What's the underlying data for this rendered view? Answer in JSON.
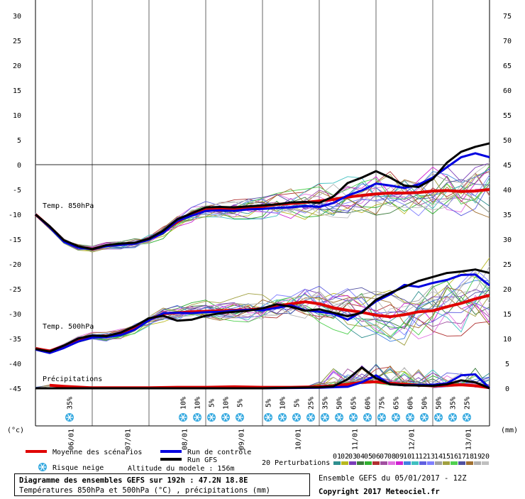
{
  "chart_data": {
    "type": "line",
    "x_ticks": [
      "06/01",
      "07/01",
      "08/01",
      "09/01",
      "10/01",
      "11/01",
      "12/01",
      "13/01"
    ],
    "left_axis": {
      "unit": "(°c)",
      "ticks": [
        30,
        25,
        20,
        15,
        10,
        5,
        0,
        -5,
        -10,
        -15,
        -20,
        -25,
        -30,
        -35,
        -40,
        -45
      ]
    },
    "right_axis": {
      "unit": "(mm)",
      "ticks": [
        75,
        70,
        65,
        60,
        55,
        50,
        45,
        40,
        35,
        30,
        25,
        20,
        15,
        10,
        5,
        0
      ]
    },
    "panel_labels": {
      "t850": "Temp. 850hPa",
      "t500": "Temp. 500hPa",
      "precip": "Précipitations"
    },
    "series": [
      {
        "name": "Moyenne des scénarios",
        "panel": "t850",
        "color": "#e00000",
        "x": [
          0,
          0.25,
          0.5,
          0.75,
          1,
          1.25,
          1.5,
          1.75,
          2,
          2.25,
          2.5,
          2.75,
          3,
          3.25,
          3.5,
          3.75,
          4,
          4.25,
          4.5,
          4.75,
          5,
          5.25,
          5.5,
          5.75,
          6,
          6.25,
          6.5,
          6.75,
          7,
          7.25,
          7.5,
          7.75,
          8
        ],
        "y": [
          -10,
          -12.5,
          -15.3,
          -16.5,
          -17,
          -16.3,
          -16,
          -15.8,
          -15,
          -13.5,
          -11.5,
          -10,
          -9,
          -8.8,
          -8.9,
          -8.7,
          -8.4,
          -8,
          -7.8,
          -7.6,
          -7.3,
          -7,
          -6.5,
          -6.2,
          -5.9,
          -5.7,
          -5.7,
          -5.6,
          -5.3,
          -5.2,
          -5.4,
          -5.3,
          -5
        ]
      },
      {
        "name": "Run de contrôle",
        "panel": "t850",
        "color": "#0000e0",
        "x": [
          0,
          0.25,
          0.5,
          0.75,
          1,
          1.25,
          1.5,
          1.75,
          2,
          2.25,
          2.5,
          2.75,
          3,
          3.25,
          3.5,
          3.75,
          4,
          4.25,
          4.5,
          4.75,
          5,
          5.25,
          5.5,
          5.75,
          6,
          6.25,
          6.5,
          6.75,
          7,
          7.25,
          7.5,
          7.75,
          8
        ],
        "y": [
          -10,
          -12.6,
          -15.5,
          -16.7,
          -17,
          -16.4,
          -16.1,
          -15.9,
          -15.1,
          -13.7,
          -11.3,
          -10.3,
          -9.3,
          -9.2,
          -9.3,
          -9.0,
          -8.9,
          -8.7,
          -8.6,
          -8.3,
          -8.5,
          -7.7,
          -6.2,
          -5.2,
          -3.8,
          -4.2,
          -4.7,
          -4.0,
          -2.6,
          -0.5,
          1.5,
          2.3,
          1.5
        ]
      },
      {
        "name": "Run GFS",
        "panel": "t850",
        "color": "#000000",
        "x": [
          0,
          0.25,
          0.5,
          0.75,
          1,
          1.25,
          1.5,
          1.75,
          2,
          2.25,
          2.5,
          2.75,
          3,
          3.25,
          3.5,
          3.75,
          4,
          4.25,
          4.5,
          4.75,
          5,
          5.25,
          5.5,
          5.75,
          6,
          6.25,
          6.5,
          6.75,
          7,
          7.25,
          7.5,
          7.75,
          8
        ],
        "y": [
          -10,
          -12.4,
          -15.2,
          -16.4,
          -17,
          -16.2,
          -15.9,
          -15.7,
          -14.9,
          -13.3,
          -11.0,
          -9.8,
          -8.6,
          -8.5,
          -8.6,
          -8.4,
          -8.2,
          -8.0,
          -7.6,
          -7.5,
          -7.7,
          -6.4,
          -3.7,
          -2.6,
          -1.3,
          -2.6,
          -4.2,
          -4.5,
          -2.9,
          0.4,
          2.6,
          3.6,
          4.3
        ]
      },
      {
        "name": "Moyenne des scénarios",
        "panel": "t500",
        "color": "#e00000",
        "x": [
          0,
          0.25,
          0.5,
          0.75,
          1,
          1.25,
          1.5,
          1.75,
          2,
          2.25,
          2.5,
          2.75,
          3,
          3.25,
          3.5,
          3.75,
          4,
          4.25,
          4.5,
          4.75,
          5,
          5.25,
          5.5,
          5.75,
          6,
          6.25,
          6.5,
          6.75,
          7,
          7.25,
          7.5,
          7.75,
          8
        ],
        "y": [
          -37,
          -37.5,
          -36.5,
          -35.2,
          -34.5,
          -34.6,
          -34,
          -32.8,
          -31.2,
          -30,
          -29.8,
          -29.6,
          -29.5,
          -29.4,
          -29.3,
          -29.2,
          -29,
          -28.5,
          -28,
          -27.6,
          -28,
          -28.8,
          -29.3,
          -29.7,
          -30.3,
          -30.6,
          -30.2,
          -29.6,
          -29.4,
          -28.6,
          -27.9,
          -27,
          -26.3
        ]
      },
      {
        "name": "Run de contrôle",
        "panel": "t500",
        "color": "#0000e0",
        "x": [
          0,
          0.25,
          0.5,
          0.75,
          1,
          1.25,
          1.5,
          1.75,
          2,
          2.25,
          2.5,
          2.75,
          3,
          3.25,
          3.5,
          3.75,
          4,
          4.25,
          4.5,
          4.75,
          5,
          5.25,
          5.5,
          5.75,
          6,
          6.25,
          6.5,
          6.75,
          7,
          7.25,
          7.5,
          7.75,
          8
        ],
        "y": [
          -37.2,
          -37.9,
          -36.9,
          -35.6,
          -34.8,
          -34.7,
          -34.3,
          -33.2,
          -31.3,
          -29.9,
          -29.8,
          -29.9,
          -29.7,
          -29.6,
          -29.4,
          -29.2,
          -29.3,
          -28.8,
          -28.3,
          -29.3,
          -29.6,
          -30.0,
          -31.2,
          -29.6,
          -27.5,
          -26.1,
          -24.2,
          -24.6,
          -23.8,
          -23.2,
          -22.2,
          -22.1,
          -24.3
        ]
      },
      {
        "name": "Run GFS",
        "panel": "t500",
        "color": "#000000",
        "x": [
          0,
          0.25,
          0.5,
          0.75,
          1,
          1.25,
          1.5,
          1.75,
          2,
          2.25,
          2.5,
          2.75,
          3,
          3.25,
          3.5,
          3.75,
          4,
          4.25,
          4.5,
          4.75,
          5,
          5.25,
          5.5,
          5.75,
          6,
          6.25,
          6.5,
          6.75,
          7,
          7.25,
          7.5,
          7.75,
          8
        ],
        "y": [
          -37.1,
          -37.6,
          -36.4,
          -35.0,
          -34.4,
          -34.5,
          -33.8,
          -32.5,
          -30.9,
          -30.4,
          -31.4,
          -31.2,
          -30.4,
          -29.9,
          -29.6,
          -29.4,
          -28.9,
          -28.1,
          -28.6,
          -29.4,
          -29.1,
          -29.8,
          -30.5,
          -29.8,
          -27.2,
          -25.8,
          -24.6,
          -23.4,
          -22.6,
          -21.8,
          -21.5,
          -21.1,
          -21.8
        ]
      },
      {
        "name": "Moyenne des scénarios",
        "panel": "precip",
        "color": "#e00000",
        "x": [
          0.25,
          0.5,
          1,
          2,
          2.5,
          3,
          3.5,
          4,
          4.5,
          5,
          5.25,
          5.5,
          5.75,
          6,
          6.25,
          6.5,
          6.75,
          7,
          7.25,
          7.5,
          7.75,
          8
        ],
        "y": [
          0.6,
          0.4,
          0.1,
          0.1,
          0.2,
          0.2,
          0.3,
          0.2,
          0.2,
          0.3,
          0.5,
          0.8,
          1.2,
          1.3,
          1.0,
          0.8,
          0.6,
          0.5,
          0.6,
          0.7,
          0.5,
          0.1
        ]
      },
      {
        "name": "Run de contrôle",
        "panel": "precip",
        "color": "#0000e0",
        "x": [
          0,
          0.5,
          1,
          2,
          3,
          4,
          5,
          5.5,
          5.75,
          6,
          6.25,
          6.5,
          7,
          7.25,
          7.5,
          7.75,
          8
        ],
        "y": [
          0,
          0,
          0,
          0,
          0,
          0,
          0.1,
          0.3,
          1.2,
          2.6,
          0.8,
          0.6,
          0.7,
          1.0,
          2.6,
          2.8,
          0
        ]
      },
      {
        "name": "Run GFS",
        "panel": "precip",
        "color": "#000000",
        "x": [
          0,
          0.5,
          1,
          2,
          3,
          4,
          5,
          5.25,
          5.5,
          5.75,
          6,
          6.25,
          6.5,
          7,
          7.25,
          7.5,
          7.75,
          8
        ],
        "y": [
          0,
          0,
          0,
          0,
          0,
          0,
          0.2,
          0.4,
          1.8,
          4.2,
          2.0,
          0.8,
          0.6,
          0.5,
          0.8,
          1.6,
          1.2,
          0
        ]
      }
    ],
    "snow_risk": [
      {
        "x": 0.55,
        "label": "35%"
      },
      {
        "x": 2.55,
        "label": "10%"
      },
      {
        "x": 2.8,
        "label": "10%"
      },
      {
        "x": 3.05,
        "label": "5%"
      },
      {
        "x": 3.3,
        "label": "10%"
      },
      {
        "x": 3.55,
        "label": "5%"
      },
      {
        "x": 4.05,
        "label": "5%"
      },
      {
        "x": 4.3,
        "label": "10%"
      },
      {
        "x": 4.55,
        "label": "5%"
      },
      {
        "x": 4.8,
        "label": "25%"
      },
      {
        "x": 5.05,
        "label": "35%"
      },
      {
        "x": 5.3,
        "label": "50%"
      },
      {
        "x": 5.55,
        "label": "65%"
      },
      {
        "x": 5.8,
        "label": "60%"
      },
      {
        "x": 6.05,
        "label": "75%"
      },
      {
        "x": 6.3,
        "label": "65%"
      },
      {
        "x": 6.55,
        "label": "60%"
      },
      {
        "x": 6.8,
        "label": "50%"
      },
      {
        "x": 7.05,
        "label": "50%"
      },
      {
        "x": 7.3,
        "label": "35%"
      },
      {
        "x": 7.55,
        "label": "25%"
      }
    ]
  },
  "legend": {
    "mean": "Moyenne des scénarios",
    "control": "Run de contrôle",
    "gfs": "Run GFS",
    "snow": "Risque neige",
    "altitude": "Altitude du modele : 156m",
    "perturbations": "20 Perturbations",
    "perturbation_ids": [
      "01",
      "02",
      "03",
      "04",
      "05",
      "06",
      "07",
      "08",
      "09",
      "10",
      "11",
      "12",
      "13",
      "14",
      "15",
      "16",
      "17",
      "18",
      "19",
      "20"
    ],
    "perturbation_colors": [
      "#2f8f8f",
      "#b8b820",
      "#7a3db8",
      "#3a7a3a",
      "#30b030",
      "#b03030",
      "#a050a0",
      "#e070e0",
      "#d020d0",
      "#4080e0",
      "#40c0c0",
      "#6060e0",
      "#8080ff",
      "#a0a0a0",
      "#a0a040",
      "#50d050",
      "#5050a0",
      "#a07030",
      "#b0b0b0",
      "#c0c0c0"
    ]
  },
  "info": {
    "title": "Diagramme des ensembles GEFS sur 192h : 47.2N 18.8E",
    "subtitle": "Températures 850hPa et 500hPa (°C) , précipitations (mm)",
    "run": "Ensemble GEFS du 05/01/2017 - 12Z",
    "copyright": "Copyright 2017 Meteociel.fr"
  },
  "colors": {
    "mean": "#e00000",
    "control": "#0000e0",
    "gfs": "#000000"
  }
}
